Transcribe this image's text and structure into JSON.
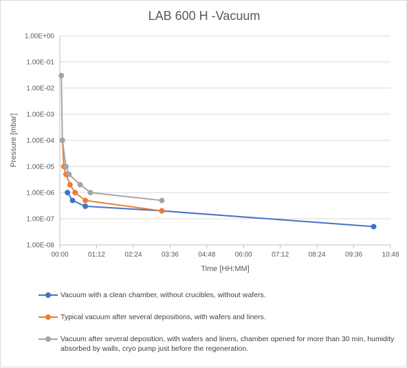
{
  "chart_data": {
    "type": "line",
    "title": "LAB 600 H -Vacuum",
    "xlabel": "Time [HH:MM]",
    "ylabel": "Pressure [mbar]",
    "x_unit": "minutes",
    "xlim": [
      0,
      648
    ],
    "x_ticks": [
      {
        "value": 0,
        "label": "00:00"
      },
      {
        "value": 72,
        "label": "01:12"
      },
      {
        "value": 144,
        "label": "02:24"
      },
      {
        "value": 216,
        "label": "03:36"
      },
      {
        "value": 288,
        "label": "04:48"
      },
      {
        "value": 360,
        "label": "06:00"
      },
      {
        "value": 432,
        "label": "07:12"
      },
      {
        "value": 504,
        "label": "08:24"
      },
      {
        "value": 576,
        "label": "09:36"
      },
      {
        "value": 648,
        "label": "10:48"
      }
    ],
    "y_scale": "log",
    "ylim": [
      1e-08,
      1
    ],
    "y_ticks": [
      {
        "value": 1,
        "label": "1.00E+00"
      },
      {
        "value": 0.1,
        "label": "1.00E-01"
      },
      {
        "value": 0.01,
        "label": "1.00E-02"
      },
      {
        "value": 0.001,
        "label": "1.00E-03"
      },
      {
        "value": 0.0001,
        "label": "1.00E-04"
      },
      {
        "value": 1e-05,
        "label": "1.00E-05"
      },
      {
        "value": 1e-06,
        "label": "1.00E-06"
      },
      {
        "value": 1e-07,
        "label": "1.00E-07"
      },
      {
        "value": 1e-08,
        "label": "1.00E-08"
      }
    ],
    "grid": {
      "horizontal": true,
      "vertical": false
    },
    "legend_position": "bottom",
    "series": [
      {
        "name": "Vacuum with a clean chamber, without crucibles, without wafers.",
        "color": "#4472C4",
        "points": [
          [
            15,
            1e-06
          ],
          [
            25,
            5e-07
          ],
          [
            50,
            3e-07
          ],
          [
            200,
            2e-07
          ],
          [
            615,
            5e-08
          ]
        ]
      },
      {
        "name": "Typical vacuum after several depositions, with wafers and liners.",
        "color": "#ED7D31",
        "points": [
          [
            5,
            0.0001
          ],
          [
            8,
            1e-05
          ],
          [
            12,
            5e-06
          ],
          [
            20,
            2e-06
          ],
          [
            30,
            1e-06
          ],
          [
            50,
            5e-07
          ],
          [
            200,
            2e-07
          ]
        ]
      },
      {
        "name": "Vacuum after several deposition, with wafers and liners, chamber opened for more than 30 min, humidity absorbed by walls, cryo pump just before the regeneration.",
        "color": "#A5A5A5",
        "points": [
          [
            3,
            0.03
          ],
          [
            5,
            0.0001
          ],
          [
            12,
            1e-05
          ],
          [
            18,
            5e-06
          ],
          [
            40,
            2e-06
          ],
          [
            60,
            1e-06
          ],
          [
            200,
            5e-07
          ]
        ]
      }
    ]
  }
}
